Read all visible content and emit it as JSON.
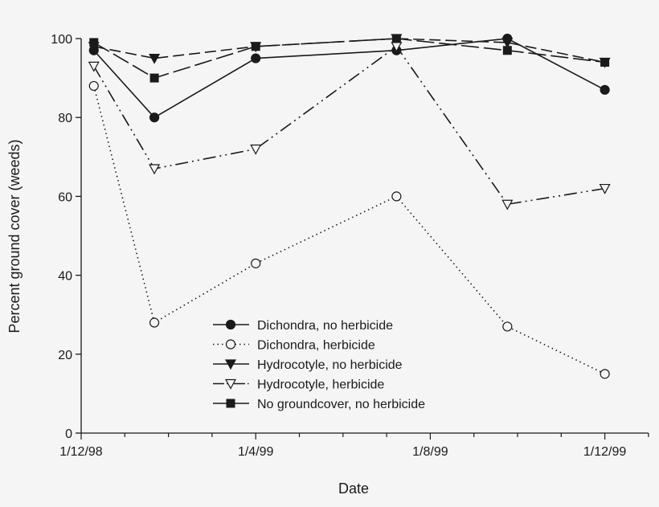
{
  "chart_data": {
    "type": "line",
    "title": "",
    "xlabel": "Date",
    "ylabel": "Percent ground cover (weeds)",
    "ylim": [
      0,
      100
    ],
    "yticks": [
      "0",
      "20",
      "40",
      "60",
      "80",
      "100"
    ],
    "xlim": [
      "1998-12-01",
      "2000-01-01"
    ],
    "xticks": [
      {
        "date": "1998-12-01",
        "label": "1/12/98"
      },
      {
        "date": "1999-04-01",
        "label": "1/4/99"
      },
      {
        "date": "1999-08-01",
        "label": "1/8/99"
      },
      {
        "date": "1999-12-01",
        "label": "1/12/99"
      }
    ],
    "minor_ticks": "monthly",
    "grid": false,
    "legend_placement": "bottom-center",
    "x": [
      "1998-12-10",
      "1999-01-22",
      "1999-04-01",
      "1999-07-08",
      "1999-09-24",
      "1999-12-01"
    ],
    "series": [
      {
        "name": "Dichondra, no herbicide",
        "marker": "filled-circle",
        "line": "solid",
        "values": [
          97,
          80,
          95,
          97,
          100,
          87
        ]
      },
      {
        "name": "Dichondra, herbicide",
        "marker": "open-circle",
        "line": "dotted",
        "values": [
          88,
          28,
          43,
          60,
          27,
          15
        ]
      },
      {
        "name": "Hydrocotyle, no herbicide",
        "marker": "filled-down-triangle",
        "line": "dashed",
        "values": [
          98,
          95,
          98,
          100,
          99,
          94
        ]
      },
      {
        "name": "Hydrocotyle, herbicide",
        "marker": "open-down-triangle",
        "line": "dash-dot-dot",
        "values": [
          93,
          67,
          72,
          98,
          58,
          62
        ]
      },
      {
        "name": "No groundcover, no herbicide",
        "marker": "filled-square",
        "line": "long-dash",
        "values": [
          99,
          90,
          98,
          100,
          97,
          94
        ]
      }
    ],
    "colors": {
      "ink": "#1a1a1a",
      "background": "#f5f5f5"
    }
  }
}
